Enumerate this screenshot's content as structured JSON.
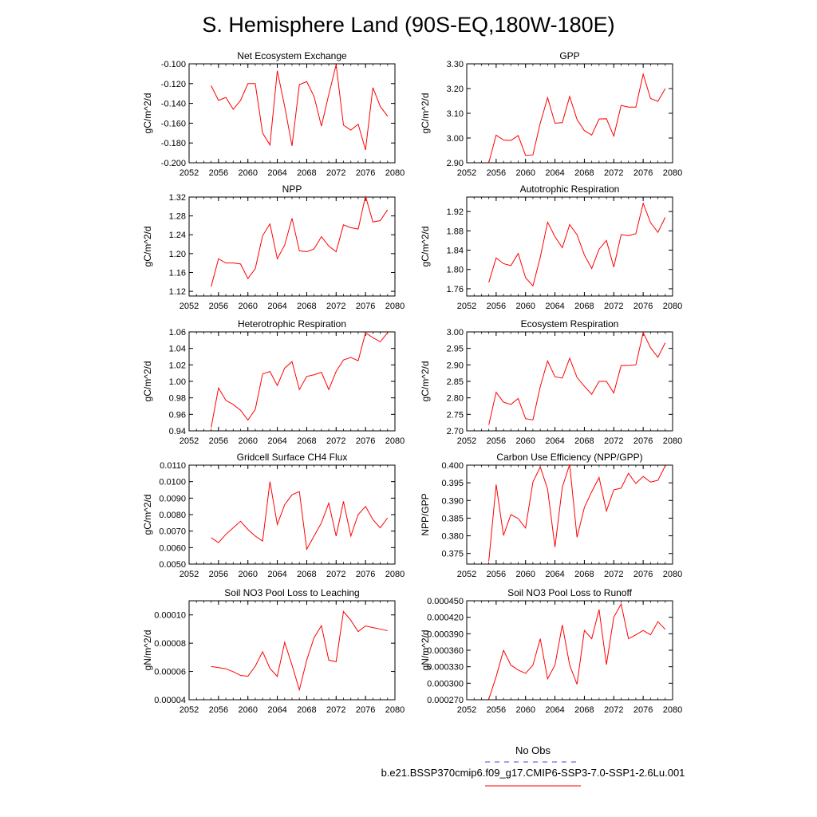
{
  "figure": {
    "title": "S. Hemisphere Land (90S-EQ,180W-180E)",
    "legend": {
      "entries": [
        {
          "label": "No Obs",
          "color": "#4444cc",
          "style": "dashed"
        },
        {
          "label": "b.e21.BSSP370cmip6.f09_g17.CMIP6-SSP3-7.0-SSP1-2.6Lu.001",
          "color": "#ff0000",
          "style": "solid"
        }
      ]
    },
    "series_color": "#ff0000"
  },
  "chart_data": [
    {
      "type": "line",
      "title": "Net Ecosystem Exchange",
      "ylabel": "gC/m^2/d",
      "xlim": [
        2052,
        2080
      ],
      "ylim": [
        -0.2,
        -0.1
      ],
      "xticks": [
        "2052",
        "2056",
        "2060",
        "2064",
        "2068",
        "2072",
        "2076",
        "2080"
      ],
      "yticks": [
        "-0.200",
        "-0.180",
        "-0.160",
        "-0.140",
        "-0.120",
        "-0.100"
      ],
      "x": [
        2055,
        2056,
        2057,
        2058,
        2059,
        2060,
        2061,
        2062,
        2063,
        2064,
        2065,
        2066,
        2067,
        2068,
        2069,
        2070,
        2071,
        2072,
        2073,
        2074,
        2075,
        2076,
        2077,
        2078,
        2079
      ],
      "y": [
        -0.122,
        -0.137,
        -0.134,
        -0.146,
        -0.137,
        -0.12,
        -0.12,
        -0.17,
        -0.182,
        -0.107,
        -0.143,
        -0.183,
        -0.121,
        -0.118,
        -0.133,
        -0.163,
        -0.131,
        -0.101,
        -0.162,
        -0.167,
        -0.161,
        -0.187,
        -0.124,
        -0.143,
        -0.153
      ]
    },
    {
      "type": "line",
      "title": "GPP",
      "ylabel": "gC/m^2/d",
      "xlim": [
        2052,
        2080
      ],
      "ylim": [
        2.9,
        3.3
      ],
      "xticks": [
        "2052",
        "2056",
        "2060",
        "2064",
        "2068",
        "2072",
        "2076",
        "2080"
      ],
      "yticks": [
        "2.90",
        "3.00",
        "3.10",
        "3.20",
        "3.30"
      ],
      "x": [
        2055,
        2056,
        2057,
        2058,
        2059,
        2060,
        2061,
        2062,
        2063,
        2064,
        2065,
        2066,
        2067,
        2068,
        2069,
        2070,
        2071,
        2072,
        2073,
        2074,
        2075,
        2076,
        2077,
        2078,
        2079
      ],
      "y": [
        2.9,
        3.012,
        2.992,
        2.99,
        3.01,
        2.93,
        2.932,
        3.06,
        3.163,
        3.06,
        3.062,
        3.168,
        3.075,
        3.03,
        3.012,
        3.077,
        3.078,
        3.008,
        3.132,
        3.125,
        3.125,
        3.258,
        3.16,
        3.148,
        3.2
      ]
    },
    {
      "type": "line",
      "title": "NPP",
      "ylabel": "gC/m^2/d",
      "xlim": [
        2052,
        2080
      ],
      "ylim": [
        1.11,
        1.32
      ],
      "xticks": [
        "2052",
        "2056",
        "2060",
        "2064",
        "2068",
        "2072",
        "2076",
        "2080"
      ],
      "yticks": [
        "1.12",
        "1.16",
        "1.20",
        "1.24",
        "1.28",
        "1.32"
      ],
      "x": [
        2055,
        2056,
        2057,
        2058,
        2059,
        2060,
        2061,
        2062,
        2063,
        2064,
        2065,
        2066,
        2067,
        2068,
        2069,
        2070,
        2071,
        2072,
        2073,
        2074,
        2075,
        2076,
        2077,
        2078,
        2079
      ],
      "y": [
        1.13,
        1.189,
        1.18,
        1.18,
        1.178,
        1.147,
        1.168,
        1.238,
        1.263,
        1.189,
        1.218,
        1.275,
        1.206,
        1.204,
        1.21,
        1.236,
        1.216,
        1.204,
        1.261,
        1.255,
        1.252,
        1.322,
        1.267,
        1.27,
        1.293
      ]
    },
    {
      "type": "line",
      "title": "Autotrophic Respiration",
      "ylabel": "gC/m^2/d",
      "xlim": [
        2052,
        2080
      ],
      "ylim": [
        1.745,
        1.95
      ],
      "xticks": [
        "2052",
        "2056",
        "2060",
        "2064",
        "2068",
        "2072",
        "2076",
        "2080"
      ],
      "yticks": [
        "1.76",
        "1.80",
        "1.84",
        "1.88",
        "1.92"
      ],
      "x": [
        2055,
        2056,
        2057,
        2058,
        2059,
        2060,
        2061,
        2062,
        2063,
        2064,
        2065,
        2066,
        2067,
        2068,
        2069,
        2070,
        2071,
        2072,
        2073,
        2074,
        2075,
        2076,
        2077,
        2078,
        2079
      ],
      "y": [
        1.773,
        1.824,
        1.812,
        1.808,
        1.833,
        1.783,
        1.766,
        1.825,
        1.898,
        1.868,
        1.845,
        1.893,
        1.872,
        1.83,
        1.802,
        1.842,
        1.86,
        1.805,
        1.872,
        1.87,
        1.874,
        1.937,
        1.897,
        1.877,
        1.908
      ]
    },
    {
      "type": "line",
      "title": "Heterotrophic Respiration",
      "ylabel": "gC/m^2/d",
      "xlim": [
        2052,
        2080
      ],
      "ylim": [
        0.94,
        1.06
      ],
      "xticks": [
        "2052",
        "2056",
        "2060",
        "2064",
        "2068",
        "2072",
        "2076",
        "2080"
      ],
      "yticks": [
        "0.94",
        "0.96",
        "0.98",
        "1.00",
        "1.02",
        "1.04",
        "1.06"
      ],
      "x": [
        2055,
        2056,
        2057,
        2058,
        2059,
        2060,
        2061,
        2062,
        2063,
        2064,
        2065,
        2066,
        2067,
        2068,
        2069,
        2070,
        2071,
        2072,
        2073,
        2074,
        2075,
        2076,
        2077,
        2078,
        2079
      ],
      "y": [
        0.944,
        0.992,
        0.977,
        0.972,
        0.965,
        0.953,
        0.966,
        1.009,
        1.012,
        0.995,
        1.016,
        1.024,
        0.99,
        1.006,
        1.008,
        1.011,
        0.99,
        1.012,
        1.026,
        1.029,
        1.025,
        1.059,
        1.053,
        1.048,
        1.059
      ]
    },
    {
      "type": "line",
      "title": "Ecosystem Respiration",
      "ylabel": "gC/m^2/d",
      "xlim": [
        2052,
        2080
      ],
      "ylim": [
        2.7,
        3.0
      ],
      "xticks": [
        "2052",
        "2056",
        "2060",
        "2064",
        "2068",
        "2072",
        "2076",
        "2080"
      ],
      "yticks": [
        "2.70",
        "2.75",
        "2.80",
        "2.85",
        "2.90",
        "2.95",
        "3.00"
      ],
      "x": [
        2055,
        2056,
        2057,
        2058,
        2059,
        2060,
        2061,
        2062,
        2063,
        2064,
        2065,
        2066,
        2067,
        2068,
        2069,
        2070,
        2071,
        2072,
        2073,
        2074,
        2075,
        2076,
        2077,
        2078,
        2079
      ],
      "y": [
        2.718,
        2.817,
        2.787,
        2.78,
        2.798,
        2.737,
        2.733,
        2.834,
        2.912,
        2.864,
        2.86,
        2.92,
        2.862,
        2.835,
        2.811,
        2.85,
        2.85,
        2.815,
        2.898,
        2.898,
        2.9,
        2.998,
        2.952,
        2.923,
        2.967
      ]
    },
    {
      "type": "line",
      "title": "Gridcell Surface CH4 Flux",
      "ylabel": "gC/m^2/d",
      "xlim": [
        2052,
        2080
      ],
      "ylim": [
        0.005,
        0.011
      ],
      "xticks": [
        "2052",
        "2056",
        "2060",
        "2064",
        "2068",
        "2072",
        "2076",
        "2080"
      ],
      "yticks": [
        "0.0050",
        "0.0060",
        "0.0070",
        "0.0080",
        "0.0090",
        "0.0100",
        "0.0110"
      ],
      "x": [
        2055,
        2056,
        2057,
        2058,
        2059,
        2060,
        2061,
        2062,
        2063,
        2064,
        2065,
        2066,
        2067,
        2068,
        2069,
        2070,
        2071,
        2072,
        2073,
        2074,
        2075,
        2076,
        2077,
        2078,
        2079
      ],
      "y": [
        0.0066,
        0.0063,
        0.0068,
        0.0072,
        0.0076,
        0.0071,
        0.0067,
        0.0064,
        0.01,
        0.0074,
        0.0086,
        0.0092,
        0.0094,
        0.0059,
        0.0067,
        0.0075,
        0.0087,
        0.0067,
        0.0088,
        0.0067,
        0.008,
        0.0085,
        0.0077,
        0.0072,
        0.0078
      ]
    },
    {
      "type": "line",
      "title": "Carbon Use Efficiency (NPP/GPP)",
      "ylabel": "NPP/GPP",
      "xlim": [
        2052,
        2080
      ],
      "ylim": [
        0.372,
        0.4
      ],
      "xticks": [
        "2052",
        "2056",
        "2060",
        "2064",
        "2068",
        "2072",
        "2076",
        "2080"
      ],
      "yticks": [
        "0.375",
        "0.380",
        "0.385",
        "0.390",
        "0.395",
        "0.400"
      ],
      "x": [
        2055,
        2056,
        2057,
        2058,
        2059,
        2060,
        2061,
        2062,
        2063,
        2064,
        2065,
        2066,
        2067,
        2068,
        2069,
        2070,
        2071,
        2072,
        2073,
        2074,
        2075,
        2076,
        2077,
        2078,
        2079
      ],
      "y": [
        0.3728,
        0.3945,
        0.3801,
        0.386,
        0.3849,
        0.3822,
        0.3952,
        0.3995,
        0.3932,
        0.3768,
        0.3938,
        0.4002,
        0.3796,
        0.388,
        0.3925,
        0.3965,
        0.387,
        0.393,
        0.3935,
        0.3977,
        0.3948,
        0.3968,
        0.3952,
        0.3957,
        0.3998
      ]
    },
    {
      "type": "line",
      "title": "Soil NO3 Pool Loss to Leaching",
      "ylabel": "gN/m^2/d",
      "xlim": [
        2052,
        2080
      ],
      "ylim": [
        4e-05,
        0.00011
      ],
      "xticks": [
        "2052",
        "2056",
        "2060",
        "2064",
        "2068",
        "2072",
        "2076",
        "2080"
      ],
      "yticks": [
        "0.00004",
        "0.00006",
        "0.00008",
        "0.00010"
      ],
      "x": [
        2055,
        2056,
        2057,
        2058,
        2059,
        2060,
        2061,
        2062,
        2063,
        2064,
        2065,
        2066,
        2067,
        2068,
        2069,
        2070,
        2071,
        2072,
        2073,
        2074,
        2075,
        2076,
        2077,
        2078,
        2079
      ],
      "y": [
        6.35e-05,
        6.27e-05,
        6.19e-05,
        5.98e-05,
        5.72e-05,
        5.66e-05,
        6.37e-05,
        7.4e-05,
        6.21e-05,
        5.65e-05,
        8.06e-05,
        6.45e-05,
        4.7e-05,
        6.8e-05,
        8.39e-05,
        9.24e-05,
        6.8e-05,
        6.69e-05,
        0.0001024,
        9.62e-05,
        8.82e-05,
        9.22e-05,
        9.1e-05,
        9e-05,
        8.88e-05
      ]
    },
    {
      "type": "line",
      "title": "Soil NO3 Pool Loss to Runoff",
      "ylabel": "gN/m^2/d",
      "xlim": [
        2052,
        2080
      ],
      "ylim": [
        0.00027,
        0.00045
      ],
      "xticks": [
        "2052",
        "2056",
        "2060",
        "2064",
        "2068",
        "2072",
        "2076",
        "2080"
      ],
      "yticks": [
        "0.000270",
        "0.000300",
        "0.000330",
        "0.000360",
        "0.000390",
        "0.000420",
        "0.000450"
      ],
      "x": [
        2055,
        2056,
        2057,
        2058,
        2059,
        2060,
        2061,
        2062,
        2063,
        2064,
        2065,
        2066,
        2067,
        2068,
        2069,
        2070,
        2071,
        2072,
        2073,
        2074,
        2075,
        2076,
        2077,
        2078,
        2079
      ],
      "y": [
        0.000271,
        0.000312,
        0.00036,
        0.000333,
        0.000324,
        0.000318,
        0.000333,
        0.000381,
        0.000308,
        0.000333,
        0.000406,
        0.000333,
        0.000298,
        0.000396,
        0.000381,
        0.000434,
        0.000334,
        0.00042,
        0.000444,
        0.000381,
        0.000388,
        0.000396,
        0.000388,
        0.000412,
        0.000398
      ]
    }
  ]
}
